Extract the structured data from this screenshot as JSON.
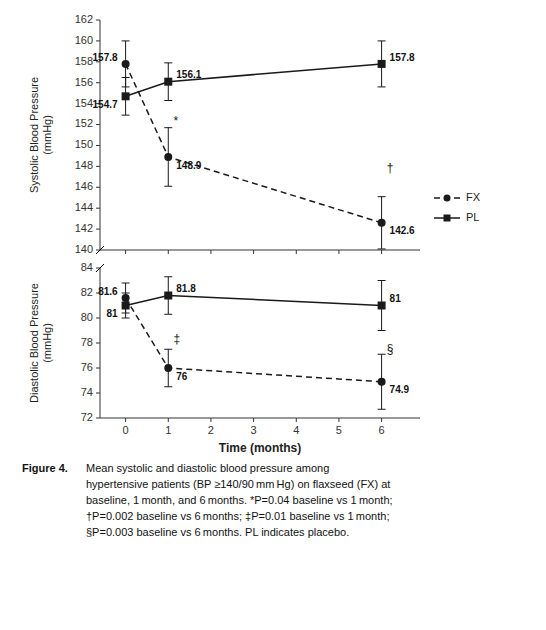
{
  "chart_data": [
    {
      "type": "line",
      "x": [
        0,
        1,
        6
      ],
      "xlim": [
        -0.6,
        6.9
      ],
      "xticks": [
        0,
        1,
        2,
        3,
        4,
        5,
        6
      ],
      "ylim": [
        140,
        162
      ],
      "yticks": [
        140,
        142,
        144,
        146,
        148,
        150,
        152,
        154,
        156,
        158,
        160,
        162
      ],
      "y_label": "Systolic Blood Pressure\n(mmHg)",
      "tick_labels": "y",
      "grid": false,
      "legend": "right",
      "data_labels": true,
      "series": [
        {
          "name": "FX",
          "color": "#1a1a1a",
          "marker": "circle",
          "line_style": "dashed",
          "values": [
            157.8,
            148.9,
            142.6
          ],
          "errors": [
            2.2,
            2.8,
            2.5
          ]
        },
        {
          "name": "PL",
          "color": "#1a1a1a",
          "marker": "square",
          "line_style": "solid",
          "values": [
            154.7,
            156.1,
            157.8
          ],
          "errors": [
            1.8,
            1.8,
            2.2
          ]
        }
      ],
      "annotations": [
        {
          "x": 1.12,
          "y": 152.0,
          "text": "*"
        },
        {
          "x": 6.12,
          "y": 147.5,
          "text": "†"
        }
      ]
    },
    {
      "type": "line",
      "x": [
        0,
        1,
        6
      ],
      "xlim": [
        -0.6,
        6.9
      ],
      "xticks": [
        0,
        1,
        2,
        3,
        4,
        5,
        6
      ],
      "ylim": [
        72,
        84
      ],
      "yticks": [
        72,
        74,
        76,
        78,
        80,
        82,
        84
      ],
      "x_label": "Time (months)",
      "y_label": "Diastolic Blood Pressure\n(mmHg)",
      "grid": false,
      "data_labels": true,
      "series": [
        {
          "name": "FX",
          "color": "#1a1a1a",
          "marker": "circle",
          "line_style": "dashed",
          "values": [
            81.6,
            76.0,
            74.9
          ],
          "value_labels": [
            "81.6",
            "76",
            "74.9"
          ],
          "errors": [
            1.2,
            1.5,
            2.2
          ]
        },
        {
          "name": "PL",
          "color": "#1a1a1a",
          "marker": "square",
          "line_style": "solid",
          "values": [
            81.0,
            81.8,
            81.0
          ],
          "value_labels": [
            "81",
            "81.8",
            "81"
          ],
          "errors": [
            1.0,
            1.5,
            2.0
          ]
        }
      ],
      "annotations": [
        {
          "x": 1.12,
          "y": 78.0,
          "text": "‡"
        },
        {
          "x": 6.12,
          "y": 77.2,
          "text": "§"
        }
      ],
      "caption": {
        "title": "Figure 4.",
        "lines": [
          "Mean systolic and diastolic blood pressure among",
          "hypertensive patients (BP ≥140/90 mm Hg) on flaxseed (FX) at",
          "baseline, 1 month, and 6 months. *​P=0.04 baseline vs 1 month;",
          "†P=0.002 baseline vs 6 months; ‡P=0.01 baseline vs 1 month;",
          "§P=0.003 baseline vs 6 months. PL indicates placebo."
        ]
      }
    }
  ]
}
